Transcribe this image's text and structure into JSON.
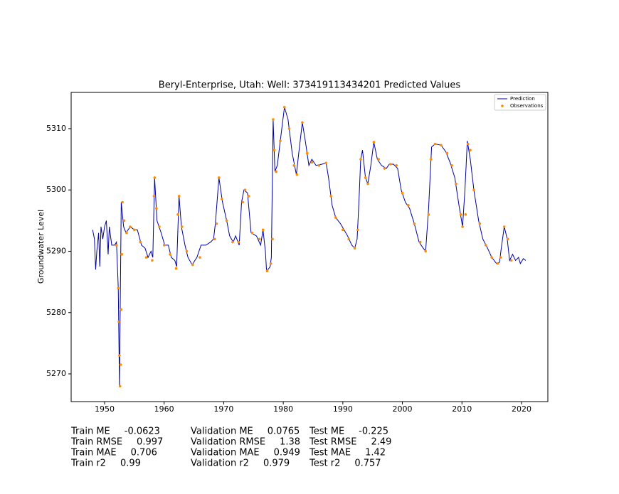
{
  "chart_data": {
    "type": "line",
    "title": "Beryl-Enterprise, Utah: Well: 373419113434201 Predicted Values",
    "y_label": "Groundwater Level",
    "xlim": [
      1944.39,
      2024.42
    ],
    "xticks": [
      1950,
      1960,
      1970,
      1980,
      1990,
      2000,
      2010,
      2020
    ],
    "ylim": [
      5265.48,
      5315.91
    ],
    "yticks": [
      5270,
      5280,
      5290,
      5300,
      5310
    ],
    "legend": "upper right",
    "series": [
      {
        "name": "Prediction",
        "type": "line",
        "color": "#00009c",
        "x": [
          1948.0,
          1948.3,
          1948.5,
          1948.7,
          1949.0,
          1949.2,
          1949.4,
          1949.7,
          1950.0,
          1950.3,
          1950.6,
          1950.8,
          1951.2,
          1951.7,
          1952.0,
          1952.3,
          1952.5,
          1952.8,
          1953.2,
          1953.6,
          1954.3,
          1955.0,
          1955.5,
          1956.2,
          1956.8,
          1957.3,
          1957.8,
          1958.1,
          1958.4,
          1958.8,
          1959.5,
          1960.1,
          1960.7,
          1961.2,
          1961.8,
          1962.1,
          1962.5,
          1962.9,
          1963.5,
          1964.0,
          1964.7,
          1965.5,
          1966.2,
          1967.0,
          1967.8,
          1968.3,
          1968.6,
          1969.2,
          1969.8,
          1970.5,
          1971.0,
          1971.6,
          1972.0,
          1972.6,
          1973.0,
          1973.4,
          1974.0,
          1974.6,
          1975.5,
          1976.2,
          1976.6,
          1977.0,
          1977.2,
          1977.8,
          1978.0,
          1978.3,
          1978.6,
          1979.0,
          1979.5,
          1980.2,
          1980.8,
          1981.5,
          1982.2,
          1982.6,
          1983.2,
          1983.7,
          1984.3,
          1984.8,
          1985.5,
          1986.5,
          1987.2,
          1987.6,
          1988.2,
          1988.8,
          1989.6,
          1990.2,
          1990.8,
          1991.5,
          1992.0,
          1992.4,
          1992.7,
          1993.0,
          1993.3,
          1993.8,
          1994.2,
          1994.7,
          1995.2,
          1995.8,
          1996.5,
          1997.3,
          1997.8,
          1998.5,
          1999.2,
          1999.8,
          2000.5,
          2001.2,
          2002.0,
          2002.8,
          2003.5,
          2003.9,
          2004.4,
          2004.9,
          2005.5,
          2006.5,
          2007.3,
          2008.0,
          2008.8,
          2009.5,
          2010.1,
          2010.5,
          2010.9,
          2011.4,
          2012.0,
          2012.8,
          2013.5,
          2014.3,
          2015.0,
          2015.8,
          2016.3,
          2016.6,
          2017.1,
          2017.6,
          2018.0,
          2018.5,
          2019.0,
          2019.5,
          2019.8,
          2020.3,
          2020.7
        ],
        "values": [
          5293.5,
          5292,
          5287,
          5290,
          5293,
          5287.5,
          5294,
          5292,
          5294,
          5295,
          5289.5,
          5294,
          5291,
          5291,
          5291.5,
          5284,
          5268,
          5298,
          5294,
          5293,
          5294,
          5293.5,
          5293.5,
          5291,
          5290.5,
          5289,
          5290,
          5289,
          5302,
          5295,
          5293,
          5291,
          5291,
          5289,
          5288.5,
          5287.5,
          5299,
          5294,
          5291,
          5289,
          5287.8,
          5289,
          5291,
          5291,
          5291.5,
          5292,
          5294.5,
          5302,
          5298,
          5295,
          5292.5,
          5291.5,
          5292.5,
          5291,
          5298,
          5300,
          5299.5,
          5293,
          5292.5,
          5291,
          5293.5,
          5290,
          5286.7,
          5287.5,
          5289,
          5311.5,
          5303,
          5304,
          5308,
          5313.5,
          5311.5,
          5306,
          5302.5,
          5306,
          5311,
          5308,
          5304,
          5305,
          5304,
          5304.2,
          5304.4,
          5302,
          5297.5,
          5295.5,
          5294.5,
          5293.5,
          5292.5,
          5291,
          5290.5,
          5292,
          5298,
          5305,
          5306.5,
          5302,
          5301,
          5304,
          5307.8,
          5305,
          5304,
          5303.5,
          5304.2,
          5304.2,
          5303.5,
          5300,
          5298,
          5297,
          5294.5,
          5291.5,
          5290.5,
          5290,
          5297,
          5307,
          5307.5,
          5307.3,
          5306.2,
          5304.5,
          5302,
          5297.5,
          5294,
          5300,
          5308,
          5305,
          5300,
          5295,
          5292,
          5290.5,
          5289,
          5288,
          5288.2,
          5290.5,
          5294,
          5292,
          5288.5,
          5289.5,
          5288.5,
          5289,
          5288,
          5288.8,
          5288.5
        ]
      },
      {
        "name": "Observations",
        "type": "scatter",
        "color": "#ff8c00",
        "x": [
          1952.0,
          1952.3,
          1952.4,
          1952.5,
          1952.6,
          1952.7,
          1952.8,
          1952.9,
          1953.0,
          1953.3,
          1953.7,
          1954.3,
          1955.0,
          1956.0,
          1957.0,
          1958.0,
          1958.3,
          1958.4,
          1958.7,
          1959.2,
          1960.0,
          1961.0,
          1962.0,
          1962.3,
          1962.5,
          1963.0,
          1963.8,
          1964.8,
          1966.0,
          1968.5,
          1968.8,
          1969.2,
          1969.7,
          1970.5,
          1971.5,
          1972.5,
          1973.2,
          1973.6,
          1974.2,
          1974.8,
          1976.0,
          1976.6,
          1977.3,
          1977.9,
          1978.2,
          1978.3,
          1978.5,
          1978.8,
          1979.5,
          1980.2,
          1981.0,
          1981.8,
          1982.3,
          1983.2,
          1984.0,
          1984.8,
          1986.0,
          1987.2,
          1988.0,
          1988.8,
          1990.0,
          1991.0,
          1992.0,
          1992.5,
          1993.0,
          1993.8,
          1994.2,
          1995.2,
          1996.0,
          1997.0,
          1998.0,
          1999.0,
          2000.0,
          2001.0,
          2002.0,
          2003.0,
          2003.9,
          2004.4,
          2004.8,
          2005.5,
          2006.5,
          2007.5,
          2008.3,
          2009.0,
          2009.8,
          2010.1,
          2010.6,
          2011.0,
          2011.4,
          2012.0,
          2013.0,
          2014.0,
          2015.0,
          2016.0,
          2016.5,
          2017.1,
          2017.7,
          2018.3
        ],
        "values": [
          5291,
          5284,
          5278.5,
          5273,
          5268,
          5271.5,
          5280.5,
          5289.5,
          5298,
          5295,
          5293,
          5294,
          5293.5,
          5291.5,
          5289,
          5288.5,
          5299,
          5302,
          5297,
          5294,
          5291,
          5289.5,
          5287.2,
          5296,
          5299,
          5294,
          5290,
          5287.8,
          5289,
          5292,
          5294.5,
          5302,
          5298.5,
          5295,
          5291.5,
          5291.5,
          5298,
          5300,
          5299,
          5293,
          5292,
          5293.5,
          5286.8,
          5288,
          5292,
          5311.5,
          5306.5,
          5303,
          5308,
          5313.5,
          5310,
          5304,
          5302.5,
          5311,
          5306,
          5304.5,
          5304,
          5304.4,
          5299,
          5295.5,
          5293.5,
          5292,
          5290.5,
          5293.5,
          5305,
          5302,
          5301,
          5307.8,
          5305,
          5303.5,
          5304.2,
          5304,
          5299.5,
          5297.5,
          5294.5,
          5291.5,
          5290,
          5296,
          5305,
          5307.5,
          5307.3,
          5306,
          5304,
          5301,
          5296,
          5294,
          5296,
          5307.5,
          5306.5,
          5300,
          5294.5,
          5291,
          5289,
          5288,
          5289,
          5294,
          5292,
          5288.5
        ]
      }
    ]
  },
  "metrics": [
    [
      {
        "label": "Train ME",
        "value": -0.0623
      },
      {
        "label": "Train RMSE",
        "value": 0.997
      },
      {
        "label": "Train MAE",
        "value": 0.706
      },
      {
        "label": "Train r2",
        "value": 0.99
      }
    ],
    [
      {
        "label": "Validation ME",
        "value": 0.0765
      },
      {
        "label": "Validation RMSE",
        "value": 1.38
      },
      {
        "label": "Validation MAE",
        "value": 0.949
      },
      {
        "label": "Validation r2",
        "value": 0.979
      }
    ],
    [
      {
        "label": "Test ME",
        "value": -0.225
      },
      {
        "label": "Test RMSE",
        "value": 2.49
      },
      {
        "label": "Test MAE",
        "value": 1.42
      },
      {
        "label": "Test r2",
        "value": 0.757
      }
    ]
  ]
}
